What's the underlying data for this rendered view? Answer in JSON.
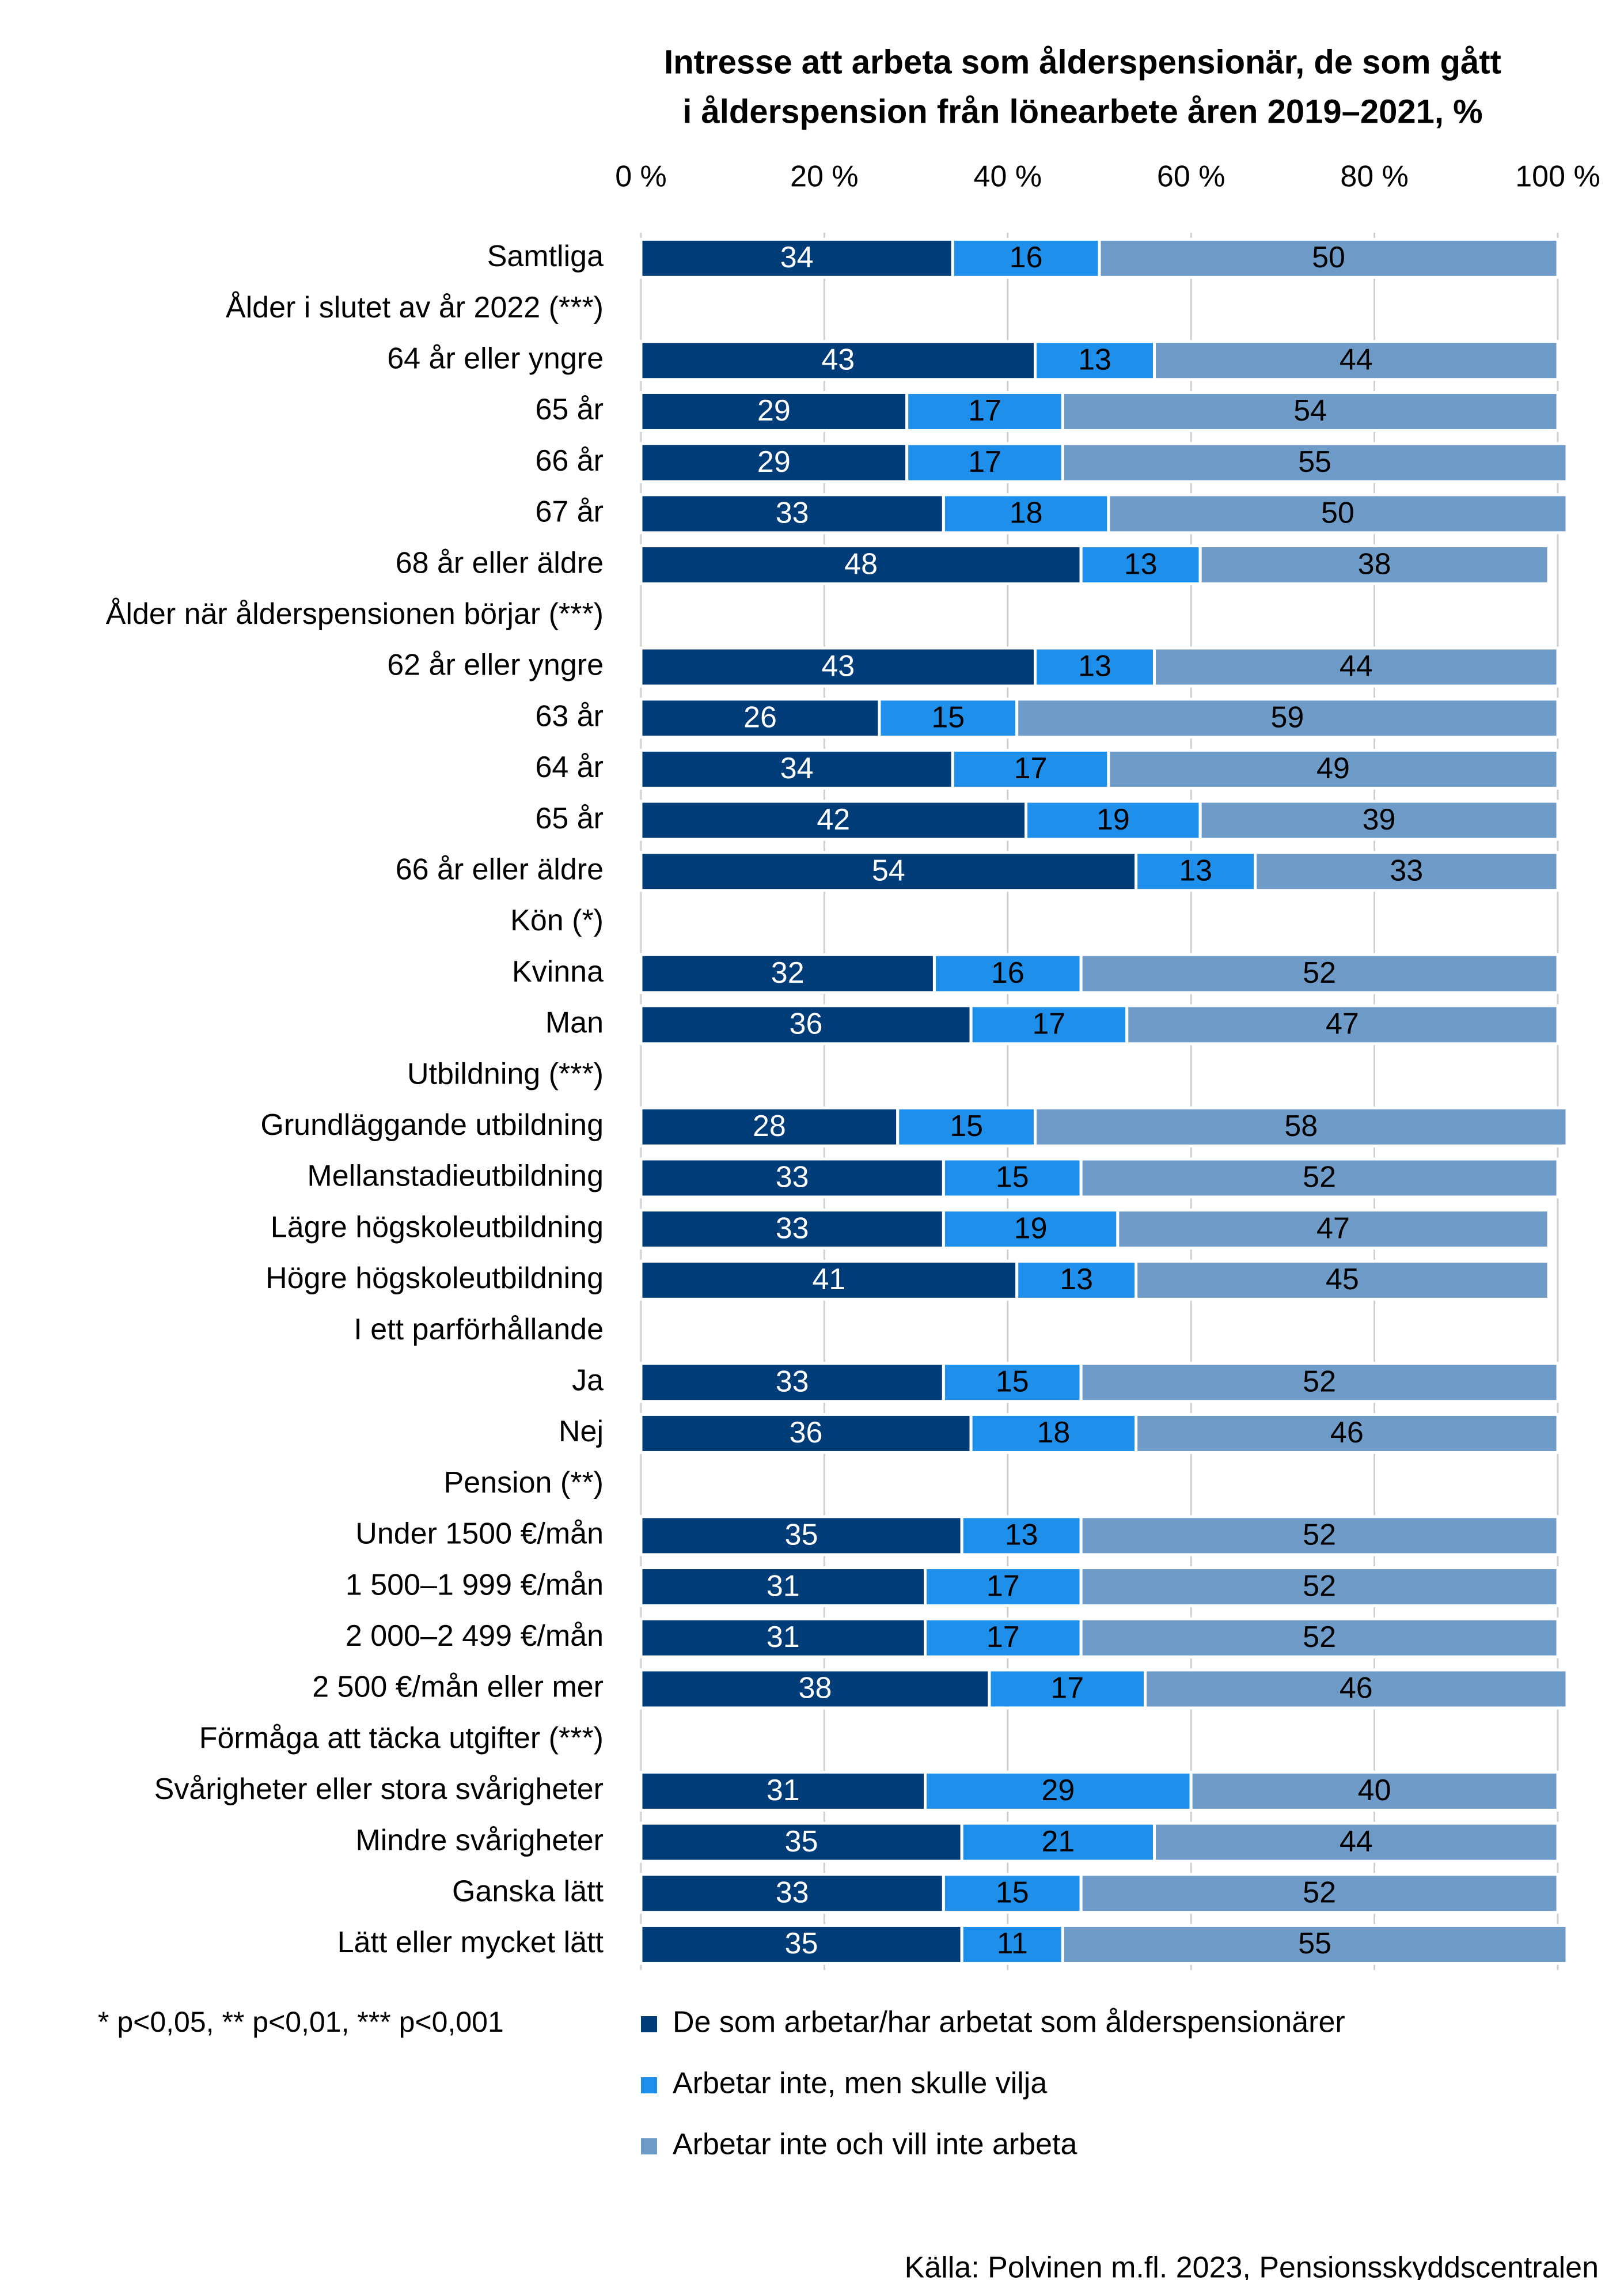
{
  "chart_data": {
    "type": "bar",
    "orientation": "horizontal",
    "stacked": true,
    "title": "Intresse att arbeta som ålderspensionär, de som gått i ålderspension från lönearbete åren 2019–2021, %",
    "title_lines": [
      "Intresse att arbeta som ålderspensionär, de som gått",
      "i ålderspension från lönearbete åren 2019–2021, %"
    ],
    "xlim": [
      0,
      100
    ],
    "x_ticks": [
      "0 %",
      "20 %",
      "40 %",
      "60 %",
      "80 %",
      "100 %"
    ],
    "x_tick_values": [
      0,
      20,
      40,
      60,
      80,
      100
    ],
    "grid": true,
    "axis_position": "top",
    "legend_position": "bottom",
    "series": [
      {
        "name": "De som arbetar/har arbetat som ålderspensionärer",
        "color": "#003C78"
      },
      {
        "name": "Arbetar inte, men skulle vilja",
        "color": "#1E90EB"
      },
      {
        "name": "Arbetar inte och vill inte arbeta",
        "color": "#6E9BC8"
      }
    ],
    "rows": [
      {
        "label": "Samtliga",
        "values": [
          34,
          16,
          50
        ]
      },
      {
        "label": "Ålder i slutet av år 2022 (***)",
        "header": true
      },
      {
        "label": "64 år eller yngre",
        "values": [
          43,
          13,
          44
        ]
      },
      {
        "label": "65 år",
        "values": [
          29,
          17,
          54
        ]
      },
      {
        "label": "66 år",
        "values": [
          29,
          17,
          55
        ]
      },
      {
        "label": "67 år",
        "values": [
          33,
          18,
          50
        ]
      },
      {
        "label": "68 år eller äldre",
        "values": [
          48,
          13,
          38
        ]
      },
      {
        "label": "Ålder när ålderspensionen börjar  (***)",
        "header": true
      },
      {
        "label": "62 år eller yngre",
        "values": [
          43,
          13,
          44
        ]
      },
      {
        "label": "63 år",
        "values": [
          26,
          15,
          59
        ]
      },
      {
        "label": "64 år",
        "values": [
          34,
          17,
          49
        ]
      },
      {
        "label": "65 år",
        "values": [
          42,
          19,
          39
        ]
      },
      {
        "label": "66 år eller äldre",
        "values": [
          54,
          13,
          33
        ]
      },
      {
        "label": "Kön (*)",
        "header": true
      },
      {
        "label": "Kvinna",
        "values": [
          32,
          16,
          52
        ]
      },
      {
        "label": "Man",
        "values": [
          36,
          17,
          47
        ]
      },
      {
        "label": "Utbildning (***)",
        "header": true
      },
      {
        "label": "Grundläggande utbildning",
        "values": [
          28,
          15,
          58
        ]
      },
      {
        "label": "Mellanstadieutbildning",
        "values": [
          33,
          15,
          52
        ]
      },
      {
        "label": "Lägre högskoleutbildning",
        "values": [
          33,
          19,
          47
        ]
      },
      {
        "label": "Högre högskoleutbildning",
        "values": [
          41,
          13,
          45
        ]
      },
      {
        "label": "I ett parförhållande",
        "header": true
      },
      {
        "label": "Ja",
        "values": [
          33,
          15,
          52
        ]
      },
      {
        "label": "Nej",
        "values": [
          36,
          18,
          46
        ]
      },
      {
        "label": "Pension (**)",
        "header": true
      },
      {
        "label": "Under 1500 €/mån",
        "values": [
          35,
          13,
          52
        ]
      },
      {
        "label": "1 500–1 999 €/mån",
        "values": [
          31,
          17,
          52
        ]
      },
      {
        "label": "2 000–2 499 €/mån",
        "values": [
          31,
          17,
          52
        ]
      },
      {
        "label": "2 500 €/mån eller mer",
        "values": [
          38,
          17,
          46
        ]
      },
      {
        "label": "Förmåga att täcka utgifter (***)",
        "header": true
      },
      {
        "label": "Svårigheter eller stora svårigheter",
        "values": [
          31,
          29,
          40
        ]
      },
      {
        "label": "Mindre svårigheter",
        "values": [
          35,
          21,
          44
        ]
      },
      {
        "label": "Ganska lätt",
        "values": [
          33,
          15,
          52
        ]
      },
      {
        "label": "Lätt eller mycket lätt",
        "values": [
          35,
          11,
          55
        ]
      }
    ],
    "footnote": "* p<0,05, ** p<0,01, *** p<0,001",
    "source": "Källa: Polvinen m.fl. 2023, Pensionsskyddscentralen"
  }
}
